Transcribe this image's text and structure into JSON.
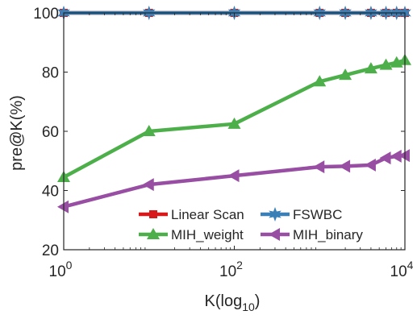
{
  "chart_data": {
    "type": "line",
    "xscale": "log",
    "xlim": [
      1,
      10000
    ],
    "ylim": [
      20,
      100
    ],
    "xlabel": "K(log10)",
    "xlabel_main": "K(log",
    "xlabel_sub": "10",
    "xlabel_close": ")",
    "ylabel": "pre@K(%)",
    "grid": false,
    "legend_position": "bottom-right",
    "x_ticks": [
      1,
      100,
      10000
    ],
    "x_tick_base": "10",
    "x_tick_exponents": [
      "0",
      "2",
      "4"
    ],
    "y_ticks": [
      "20",
      "40",
      "60",
      "80",
      "100"
    ],
    "y_tick_values": [
      20,
      40,
      60,
      80,
      100
    ],
    "x": [
      1,
      10,
      100,
      1000,
      2000,
      4000,
      6000,
      8000,
      10000
    ],
    "series": [
      {
        "name": "Linear Scan",
        "color": "#d7191c",
        "marker": "square",
        "values": [
          100,
          100,
          100,
          100,
          100,
          100,
          100,
          100,
          100
        ]
      },
      {
        "name": "FSWBC",
        "color": "#3a7fb5",
        "marker": "star",
        "values": [
          100,
          100,
          100,
          100,
          100,
          100,
          100,
          100,
          100
        ]
      },
      {
        "name": "MIH_weight",
        "color": "#4daf4a",
        "marker": "triangle-up",
        "values": [
          44.5,
          60,
          62.5,
          76.8,
          79,
          81.2,
          82.4,
          83.2,
          84
        ]
      },
      {
        "name": "MIH_binary",
        "color": "#984ea3",
        "marker": "triangle-left",
        "values": [
          34.5,
          42,
          45,
          48,
          48.2,
          48.6,
          51,
          51.6,
          51.8
        ]
      }
    ]
  }
}
